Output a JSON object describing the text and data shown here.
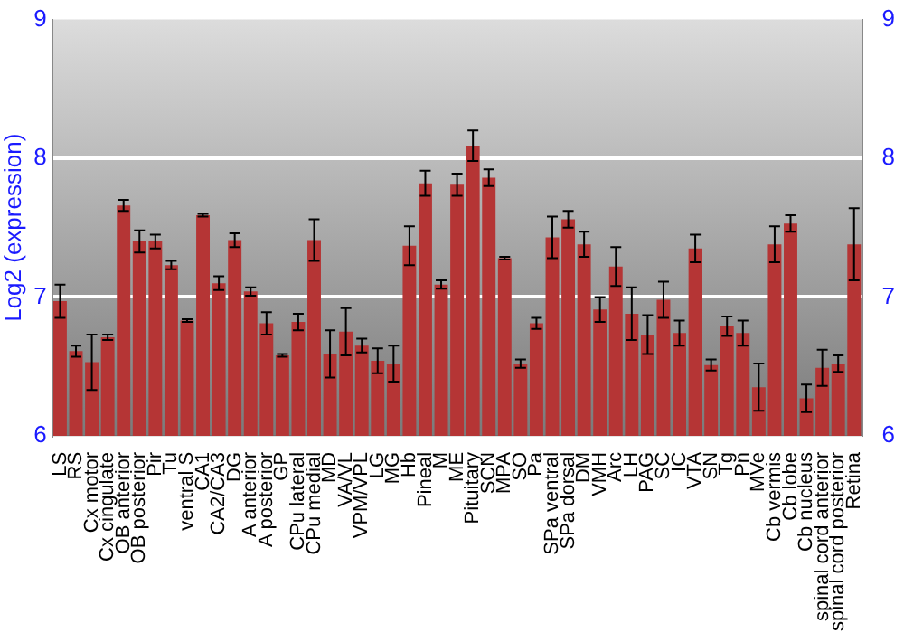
{
  "chart_data": {
    "type": "bar",
    "ylabel": "Log2 (expression)",
    "categories": [
      "LS",
      "RS",
      "Cx motor",
      "Cx cingulate",
      "OB anterior",
      "OB posterior",
      "Pir",
      "Tu",
      "ventral S",
      "CA1",
      "CA2/CA3",
      "DG",
      "A anterior",
      "A posterior",
      "GP",
      "CPu lateral",
      "CPu medial",
      "MD",
      "VA/VL",
      "VPM/VPL",
      "LG",
      "MG",
      "Hb",
      "Pineal",
      "M",
      "ME",
      "Pituitary",
      "SCN",
      "MPA",
      "SO",
      "Pa",
      "SPa ventral",
      "SPa dorsal",
      "DM",
      "VMH",
      "Arc",
      "LH",
      "PAG",
      "SC",
      "IC",
      "VTA",
      "SN",
      "Tg",
      "Pn",
      "MVe",
      "Cb vermis",
      "Cb lobe",
      "Cb nucleus",
      "spinal cord anterior",
      "spinal cord posterior",
      "Retina"
    ],
    "values": [
      6.97,
      6.61,
      6.53,
      6.71,
      7.66,
      7.4,
      7.4,
      7.23,
      6.83,
      7.59,
      7.1,
      7.41,
      7.04,
      6.81,
      6.58,
      6.82,
      7.41,
      6.59,
      6.75,
      6.65,
      6.54,
      6.52,
      7.37,
      7.82,
      7.09,
      7.81,
      8.09,
      7.86,
      7.28,
      6.52,
      6.81,
      7.43,
      7.56,
      7.38,
      6.91,
      7.22,
      6.88,
      6.73,
      6.98,
      6.74,
      7.35,
      6.51,
      6.79,
      6.74,
      6.35,
      7.38,
      7.53,
      6.27,
      6.49,
      6.52,
      7.38
    ],
    "errors": [
      0.12,
      0.04,
      0.2,
      0.02,
      0.04,
      0.08,
      0.05,
      0.03,
      0.01,
      0.01,
      0.05,
      0.05,
      0.03,
      0.08,
      0.01,
      0.06,
      0.15,
      0.17,
      0.17,
      0.05,
      0.09,
      0.13,
      0.14,
      0.09,
      0.03,
      0.08,
      0.11,
      0.06,
      0.01,
      0.03,
      0.04,
      0.15,
      0.06,
      0.09,
      0.09,
      0.14,
      0.19,
      0.14,
      0.13,
      0.09,
      0.1,
      0.04,
      0.07,
      0.09,
      0.17,
      0.13,
      0.06,
      0.1,
      0.13,
      0.06,
      0.26
    ],
    "color": "#b53535",
    "ylim": [
      6,
      9
    ],
    "yticks": [
      6,
      7,
      8,
      9
    ],
    "y2lim": [
      6,
      9
    ],
    "y2ticks": [
      6,
      7,
      8,
      9
    ],
    "grid": "y",
    "legend": false
  }
}
